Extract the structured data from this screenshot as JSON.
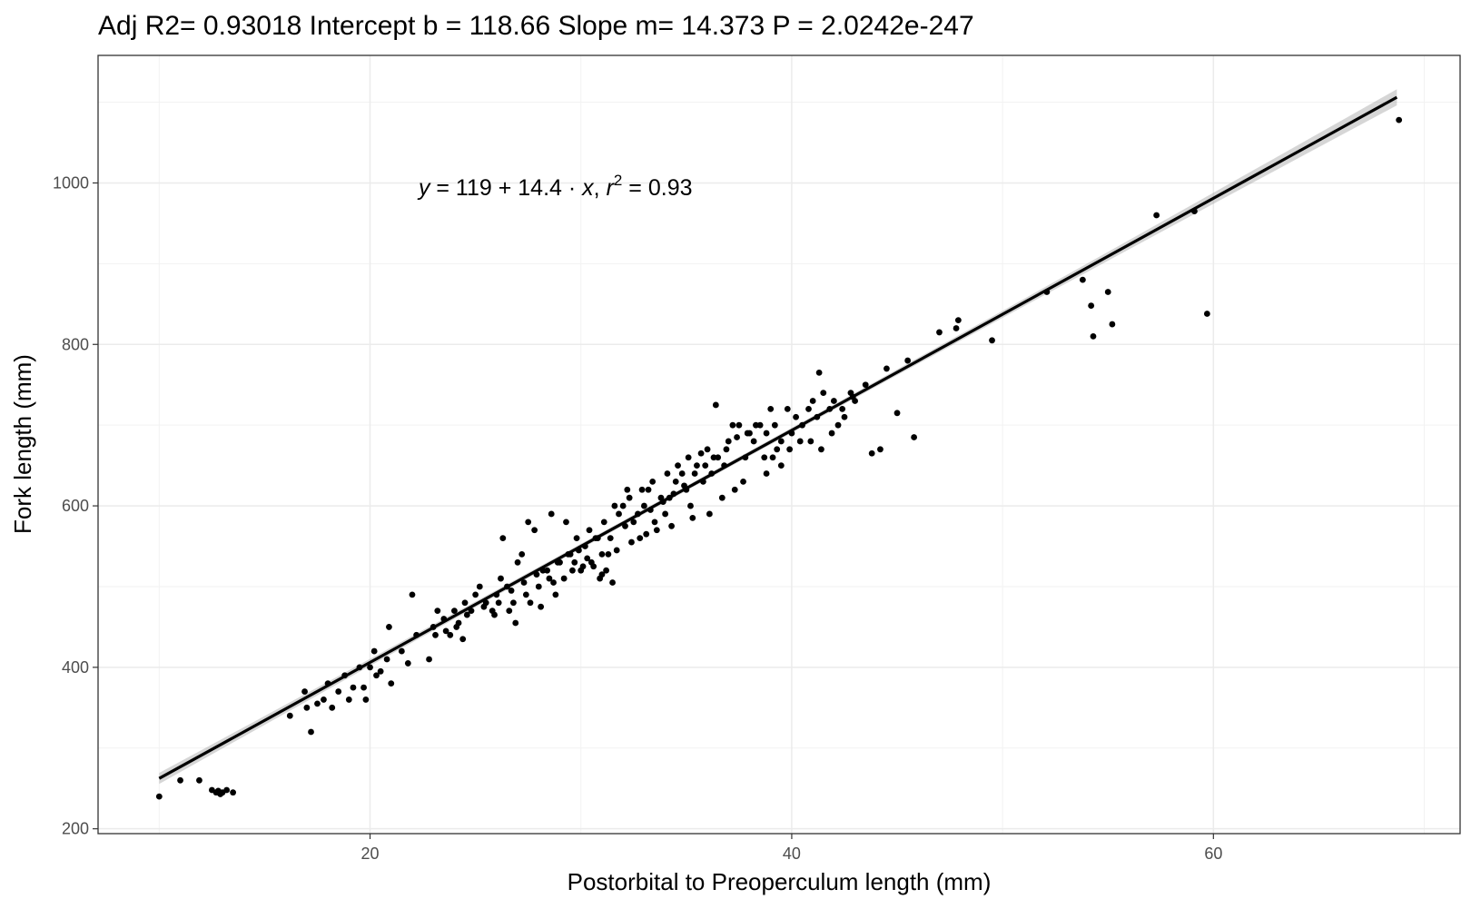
{
  "chart_data": {
    "type": "scatter",
    "title": "Adj R2=  0.93018 Intercept b =  118.66 Slope m=  14.373 P =  2.0242e-247",
    "xlabel": "Postorbital to Preoperculum length (mm)",
    "ylabel": "Fork length (mm)",
    "xlim": [
      7.1,
      71.7
    ],
    "ylim": [
      194,
      1158
    ],
    "x_ticks": [
      20,
      40,
      60
    ],
    "y_ticks": [
      200,
      400,
      600,
      800,
      1000
    ],
    "x_tick_labels": [
      "20",
      "40",
      "60"
    ],
    "y_tick_labels": [
      "200",
      "400",
      "600",
      "800",
      "1000"
    ],
    "grid": true,
    "legend": "none",
    "annotation": {
      "parts": [
        "y",
        " = 119 + 14.4 · ",
        "x",
        ",  ",
        "r",
        "2",
        " = 0.93"
      ],
      "x": 22.3,
      "y": 985
    },
    "regression": {
      "intercept": 118.66,
      "slope": 14.373,
      "x_range": [
        10,
        68.7
      ],
      "ci_halfwidth_ends": 10,
      "ci_halfwidth_mid": 3,
      "ci_mid_x": 35
    },
    "points": [
      [
        10.0,
        240
      ],
      [
        12.8,
        247
      ],
      [
        13.0,
        245
      ],
      [
        12.5,
        248
      ],
      [
        12.7,
        245
      ],
      [
        12.9,
        243
      ],
      [
        11.9,
        260
      ],
      [
        13.2,
        248
      ],
      [
        13.5,
        245
      ],
      [
        11.0,
        260
      ],
      [
        16.2,
        340
      ],
      [
        16.9,
        370
      ],
      [
        17.0,
        350
      ],
      [
        17.5,
        355
      ],
      [
        17.2,
        320
      ],
      [
        17.8,
        360
      ],
      [
        18.0,
        380
      ],
      [
        18.2,
        350
      ],
      [
        18.5,
        370
      ],
      [
        19.0,
        360
      ],
      [
        18.8,
        390
      ],
      [
        19.5,
        400
      ],
      [
        19.2,
        375
      ],
      [
        19.8,
        360
      ],
      [
        20.0,
        400
      ],
      [
        20.2,
        420
      ],
      [
        20.5,
        395
      ],
      [
        20.8,
        410
      ],
      [
        21.0,
        380
      ],
      [
        20.3,
        390
      ],
      [
        21.5,
        420
      ],
      [
        21.8,
        405
      ],
      [
        19.7,
        375
      ],
      [
        20.9,
        450
      ],
      [
        22.2,
        440
      ],
      [
        22.8,
        410
      ],
      [
        23.0,
        450
      ],
      [
        22.0,
        490
      ],
      [
        23.5,
        460
      ],
      [
        24.0,
        470
      ],
      [
        23.8,
        440
      ],
      [
        24.2,
        455
      ],
      [
        24.5,
        480
      ],
      [
        24.8,
        470
      ],
      [
        25.0,
        490
      ],
      [
        25.2,
        500
      ],
      [
        24.4,
        435
      ],
      [
        23.2,
        470
      ],
      [
        25.5,
        480
      ],
      [
        25.8,
        470
      ],
      [
        26.0,
        490
      ],
      [
        26.2,
        510
      ],
      [
        26.5,
        500
      ],
      [
        26.8,
        480
      ],
      [
        27.0,
        530
      ],
      [
        26.3,
        560
      ],
      [
        27.5,
        580
      ],
      [
        27.8,
        570
      ],
      [
        27.2,
        540
      ],
      [
        28.0,
        500
      ],
      [
        28.2,
        520
      ],
      [
        28.5,
        510
      ],
      [
        28.8,
        490
      ],
      [
        29.0,
        530
      ],
      [
        29.2,
        510
      ],
      [
        29.5,
        540
      ],
      [
        29.8,
        560
      ],
      [
        28.6,
        590
      ],
      [
        29.3,
        580
      ],
      [
        30.0,
        520
      ],
      [
        30.2,
        550
      ],
      [
        30.5,
        530
      ],
      [
        30.8,
        560
      ],
      [
        31.0,
        540
      ],
      [
        31.2,
        520
      ],
      [
        31.5,
        505
      ],
      [
        31.8,
        590
      ],
      [
        32.0,
        600
      ],
      [
        32.2,
        620
      ],
      [
        32.5,
        580
      ],
      [
        32.8,
        560
      ],
      [
        33.0,
        600
      ],
      [
        33.2,
        620
      ],
      [
        33.5,
        580
      ],
      [
        33.8,
        610
      ],
      [
        34.0,
        590
      ],
      [
        34.2,
        610
      ],
      [
        34.5,
        630
      ],
      [
        34.8,
        640
      ],
      [
        35.0,
        620
      ],
      [
        35.2,
        600
      ],
      [
        35.5,
        650
      ],
      [
        35.8,
        630
      ],
      [
        36.0,
        670
      ],
      [
        36.2,
        640
      ],
      [
        36.5,
        660
      ],
      [
        36.8,
        650
      ],
      [
        37.0,
        680
      ],
      [
        37.2,
        700
      ],
      [
        36.4,
        725
      ],
      [
        37.5,
        700
      ],
      [
        37.8,
        660
      ],
      [
        38.0,
        690
      ],
      [
        38.2,
        680
      ],
      [
        38.5,
        700
      ],
      [
        38.8,
        690
      ],
      [
        39.0,
        720
      ],
      [
        39.2,
        700
      ],
      [
        39.5,
        680
      ],
      [
        39.8,
        720
      ],
      [
        40.0,
        690
      ],
      [
        40.2,
        710
      ],
      [
        40.5,
        700
      ],
      [
        40.8,
        720
      ],
      [
        41.0,
        730
      ],
      [
        41.2,
        710
      ],
      [
        41.5,
        740
      ],
      [
        41.8,
        720
      ],
      [
        42.0,
        730
      ],
      [
        42.2,
        700
      ],
      [
        42.5,
        710
      ],
      [
        42.8,
        740
      ],
      [
        43.0,
        730
      ],
      [
        43.5,
        750
      ],
      [
        43.8,
        665
      ],
      [
        44.2,
        670
      ],
      [
        44.5,
        770
      ],
      [
        45.0,
        715
      ],
      [
        45.5,
        780
      ],
      [
        45.8,
        685
      ],
      [
        47.0,
        815
      ],
      [
        47.8,
        820
      ],
      [
        47.9,
        830
      ],
      [
        49.5,
        805
      ],
      [
        52.1,
        865
      ],
      [
        53.8,
        880
      ],
      [
        54.2,
        848
      ],
      [
        54.3,
        810
      ],
      [
        55.0,
        865
      ],
      [
        55.2,
        825
      ],
      [
        57.3,
        960
      ],
      [
        59.1,
        965
      ],
      [
        59.7,
        838
      ],
      [
        68.8,
        1078
      ],
      [
        39.5,
        650
      ],
      [
        38.8,
        640
      ],
      [
        39.3,
        670
      ],
      [
        30.6,
        525
      ],
      [
        31.0,
        515
      ],
      [
        29.7,
        530
      ],
      [
        30.3,
        535
      ],
      [
        30.9,
        510
      ],
      [
        31.3,
        540
      ],
      [
        30.1,
        525
      ],
      [
        29.6,
        520
      ],
      [
        30.7,
        560
      ],
      [
        31.4,
        560
      ],
      [
        32.1,
        575
      ],
      [
        32.7,
        590
      ],
      [
        33.3,
        595
      ],
      [
        33.9,
        605
      ],
      [
        34.4,
        615
      ],
      [
        34.9,
        625
      ],
      [
        35.4,
        640
      ],
      [
        35.9,
        650
      ],
      [
        36.3,
        660
      ],
      [
        36.9,
        670
      ],
      [
        37.4,
        685
      ],
      [
        37.9,
        690
      ],
      [
        38.3,
        700
      ],
      [
        26.1,
        480
      ],
      [
        26.7,
        495
      ],
      [
        27.3,
        505
      ],
      [
        27.9,
        515
      ],
      [
        28.4,
        520
      ],
      [
        28.9,
        530
      ],
      [
        29.4,
        540
      ],
      [
        29.9,
        545
      ],
      [
        25.4,
        475
      ],
      [
        25.9,
        465
      ],
      [
        24.6,
        465
      ],
      [
        24.1,
        450
      ],
      [
        23.6,
        445
      ],
      [
        23.1,
        440
      ],
      [
        27.6,
        480
      ],
      [
        28.1,
        475
      ],
      [
        28.7,
        505
      ],
      [
        27.4,
        490
      ],
      [
        26.6,
        470
      ],
      [
        26.9,
        455
      ],
      [
        30.4,
        570
      ],
      [
        31.1,
        580
      ],
      [
        31.6,
        600
      ],
      [
        32.3,
        610
      ],
      [
        32.9,
        620
      ],
      [
        33.4,
        630
      ],
      [
        34.1,
        640
      ],
      [
        34.6,
        650
      ],
      [
        35.1,
        660
      ],
      [
        35.7,
        665
      ],
      [
        31.7,
        545
      ],
      [
        32.4,
        555
      ],
      [
        33.1,
        565
      ],
      [
        33.6,
        570
      ],
      [
        34.3,
        575
      ],
      [
        35.3,
        585
      ],
      [
        36.1,
        590
      ],
      [
        36.7,
        610
      ],
      [
        37.3,
        620
      ],
      [
        37.7,
        630
      ],
      [
        38.7,
        660
      ],
      [
        39.1,
        660
      ],
      [
        39.9,
        670
      ],
      [
        40.4,
        680
      ],
      [
        40.9,
        680
      ],
      [
        41.4,
        670
      ],
      [
        41.9,
        690
      ],
      [
        42.4,
        720
      ],
      [
        42.9,
        735
      ],
      [
        41.3,
        765
      ]
    ]
  }
}
